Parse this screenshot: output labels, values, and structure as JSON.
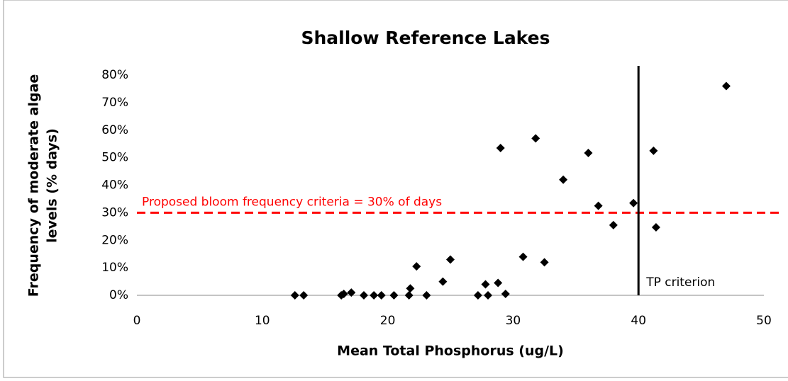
{
  "chart_data": {
    "type": "scatter",
    "title": "Shallow Reference Lakes",
    "x_label": "Mean Total Phosphorus (ug/L)",
    "y_label": [
      "Frequency of moderate algae",
      "levels (% days)"
    ],
    "x": [
      12.6,
      13.3,
      16.3,
      16.5,
      17.1,
      18.1,
      18.9,
      19.5,
      20.5,
      21.7,
      21.8,
      22.3,
      23.1,
      24.4,
      25.0,
      27.2,
      27.8,
      28.0,
      28.8,
      29.0,
      29.4,
      30.8,
      31.8,
      32.5,
      34.0,
      36.0,
      36.8,
      38.0,
      39.6,
      41.2,
      41.4,
      47.0
    ],
    "values": [
      0,
      0,
      0,
      0.5,
      1,
      0,
      0,
      0,
      0,
      0,
      2.5,
      10.5,
      0,
      5,
      13,
      0,
      4,
      0,
      4.5,
      53.5,
      0.5,
      14,
      57,
      12,
      42,
      51.7,
      32.5,
      25.5,
      33.5,
      52.5,
      24.7,
      76
    ],
    "color": "#000000",
    "xlim": [
      0,
      50
    ],
    "xticks": [
      0,
      10,
      20,
      30,
      40,
      50
    ],
    "ylim": [
      0,
      80
    ],
    "yticks": [
      {
        "value": 0,
        "label": "0%"
      },
      {
        "value": 10,
        "label": "10%"
      },
      {
        "value": 20,
        "label": "20%"
      },
      {
        "value": 30,
        "label": "30%"
      },
      {
        "value": 40,
        "label": "40%"
      },
      {
        "value": 50,
        "label": "50%"
      },
      {
        "value": 60,
        "label": "60%"
      },
      {
        "value": 70,
        "label": "70%"
      },
      {
        "value": 80,
        "label": "80%"
      }
    ],
    "grid": false,
    "hlines": [
      {
        "value": 30,
        "label": "Proposed bloom frequency criteria = 30% of days",
        "color": "#ff0000"
      }
    ],
    "vlines": [
      {
        "value": 40,
        "label": "TP criterion",
        "color": "#000000"
      }
    ]
  }
}
